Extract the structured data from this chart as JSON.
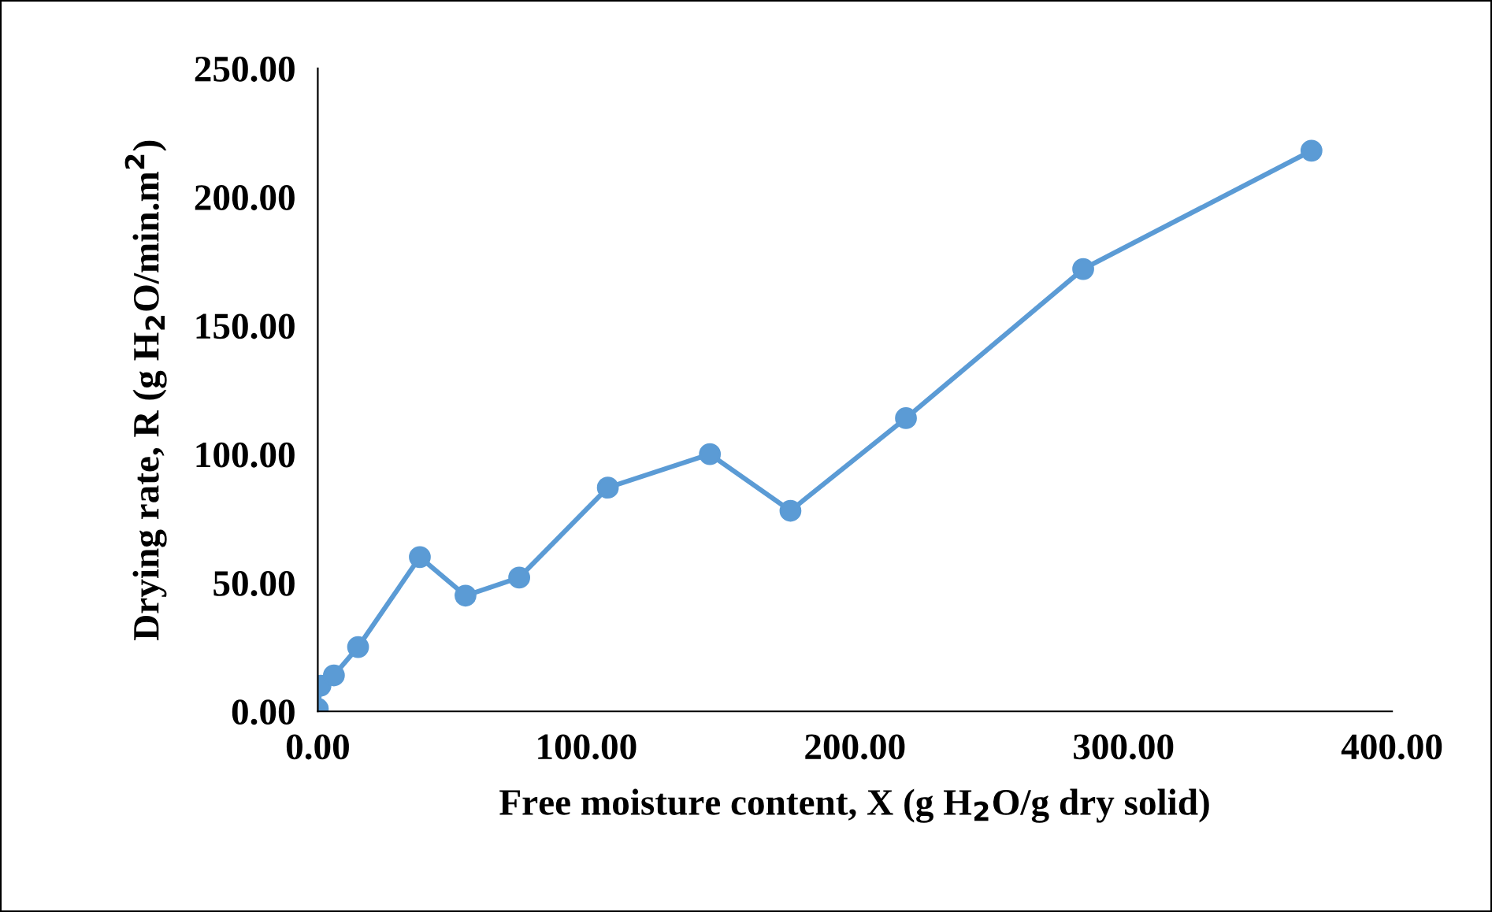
{
  "chart_data": {
    "type": "line",
    "xlabel": "Free moisture content, X (g H$_{2}$O/g dry solid)",
    "ylabel": "Drying rate, R (g H$_{2}$O/min.m$^{2}$)",
    "x": [
      0,
      1,
      6,
      15,
      38,
      55,
      75,
      108,
      146,
      176,
      219,
      285,
      370
    ],
    "series": [
      {
        "color": "#5b9bd5",
        "values": [
          1,
          10,
          14,
          25,
          60,
          45,
          52,
          87,
          100,
          78,
          114,
          172,
          218
        ]
      }
    ],
    "marker": "circle",
    "line_style": "solid",
    "grid": false,
    "legend": false,
    "xlim": [
      0,
      400
    ],
    "ylim": [
      0,
      250
    ],
    "xticks": [
      {
        "value": 0,
        "label": "0.00"
      },
      {
        "value": 100,
        "label": "100.00"
      },
      {
        "value": 200,
        "label": "200.00"
      },
      {
        "value": 300,
        "label": "300.00"
      },
      {
        "value": 400,
        "label": "400.00"
      }
    ],
    "yticks": [
      {
        "value": 0,
        "label": "0.00"
      },
      {
        "value": 50,
        "label": "50.00"
      },
      {
        "value": 100,
        "label": "100.00"
      },
      {
        "value": 150,
        "label": "150.00"
      },
      {
        "value": 200,
        "label": "200.00"
      },
      {
        "value": 250,
        "label": "250.00"
      }
    ]
  }
}
